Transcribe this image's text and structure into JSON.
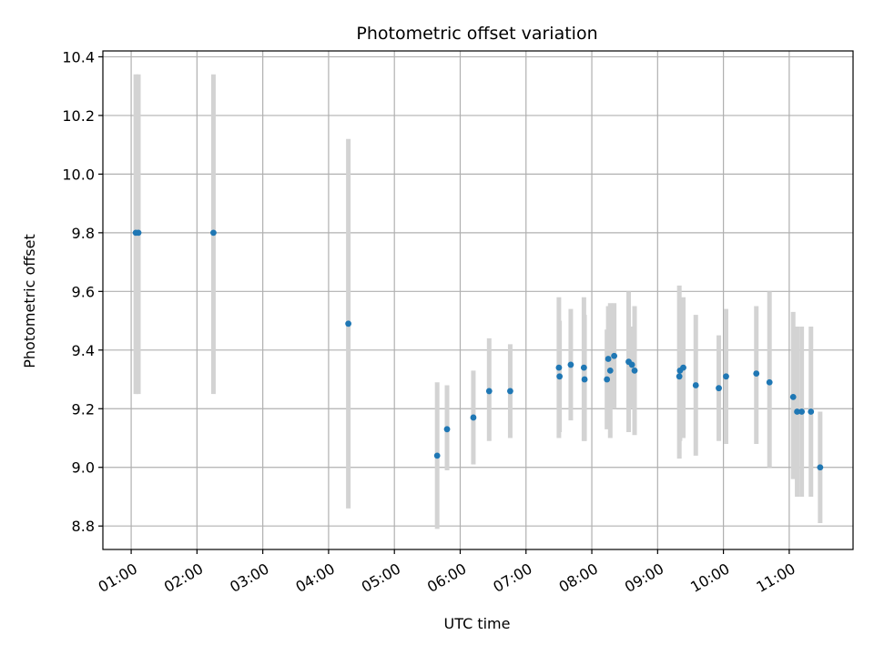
{
  "chart_data": {
    "type": "scatter",
    "title": "Photometric offset variation",
    "xlabel": "UTC time",
    "ylabel": "Photometric offset",
    "x_tick_labels": [
      "01:00",
      "02:00",
      "03:00",
      "04:00",
      "05:00",
      "06:00",
      "07:00",
      "08:00",
      "09:00",
      "10:00",
      "11:00"
    ],
    "x_ticks_hours": [
      1,
      2,
      3,
      4,
      5,
      6,
      7,
      8,
      9,
      10,
      11
    ],
    "xlim_hours": [
      0.57,
      11.97
    ],
    "y_tick_labels": [
      "8.8",
      "9.0",
      "9.2",
      "9.4",
      "9.6",
      "9.8",
      "10.0",
      "10.2",
      "10.4"
    ],
    "y_ticks": [
      8.8,
      9.0,
      9.2,
      9.4,
      9.6,
      9.8,
      10.0,
      10.2,
      10.4
    ],
    "ylim": [
      8.72,
      10.42
    ],
    "grid": true,
    "point_color": "#1f77b4",
    "errorbar_color": "#d3d3d3",
    "points": [
      {
        "t": 1.07,
        "y": 9.8,
        "lo": 9.25,
        "hi": 10.34
      },
      {
        "t": 1.11,
        "y": 9.8,
        "lo": 9.25,
        "hi": 10.34
      },
      {
        "t": 2.25,
        "y": 9.8,
        "lo": 9.25,
        "hi": 10.34
      },
      {
        "t": 4.3,
        "y": 9.49,
        "lo": 8.86,
        "hi": 10.12
      },
      {
        "t": 5.65,
        "y": 9.04,
        "lo": 8.79,
        "hi": 9.29
      },
      {
        "t": 5.8,
        "y": 9.13,
        "lo": 8.99,
        "hi": 9.28
      },
      {
        "t": 6.2,
        "y": 9.17,
        "lo": 9.01,
        "hi": 9.33
      },
      {
        "t": 6.44,
        "y": 9.26,
        "lo": 9.09,
        "hi": 9.44
      },
      {
        "t": 6.76,
        "y": 9.26,
        "lo": 9.1,
        "hi": 9.42
      },
      {
        "t": 7.5,
        "y": 9.34,
        "lo": 9.1,
        "hi": 9.58
      },
      {
        "t": 7.51,
        "y": 9.31,
        "lo": 9.12,
        "hi": 9.5
      },
      {
        "t": 7.68,
        "y": 9.35,
        "lo": 9.16,
        "hi": 9.54
      },
      {
        "t": 7.88,
        "y": 9.34,
        "lo": 9.09,
        "hi": 9.58
      },
      {
        "t": 7.89,
        "y": 9.3,
        "lo": 9.09,
        "hi": 9.52
      },
      {
        "t": 8.23,
        "y": 9.3,
        "lo": 9.13,
        "hi": 9.47
      },
      {
        "t": 8.25,
        "y": 9.37,
        "lo": 9.19,
        "hi": 9.55
      },
      {
        "t": 8.28,
        "y": 9.33,
        "lo": 9.1,
        "hi": 9.56
      },
      {
        "t": 8.34,
        "y": 9.38,
        "lo": 9.2,
        "hi": 9.56
      },
      {
        "t": 8.56,
        "y": 9.36,
        "lo": 9.12,
        "hi": 9.6
      },
      {
        "t": 8.61,
        "y": 9.35,
        "lo": 9.2,
        "hi": 9.48
      },
      {
        "t": 8.65,
        "y": 9.33,
        "lo": 9.11,
        "hi": 9.55
      },
      {
        "t": 9.33,
        "y": 9.31,
        "lo": 9.03,
        "hi": 9.62
      },
      {
        "t": 9.34,
        "y": 9.33,
        "lo": 9.09,
        "hi": 9.57
      },
      {
        "t": 9.39,
        "y": 9.34,
        "lo": 9.1,
        "hi": 9.58
      },
      {
        "t": 9.58,
        "y": 9.28,
        "lo": 9.04,
        "hi": 9.52
      },
      {
        "t": 9.93,
        "y": 9.27,
        "lo": 9.09,
        "hi": 9.45
      },
      {
        "t": 10.04,
        "y": 9.31,
        "lo": 9.08,
        "hi": 9.54
      },
      {
        "t": 10.5,
        "y": 9.32,
        "lo": 9.08,
        "hi": 9.55
      },
      {
        "t": 10.7,
        "y": 9.29,
        "lo": 9.0,
        "hi": 9.6
      },
      {
        "t": 11.06,
        "y": 9.24,
        "lo": 8.96,
        "hi": 9.53
      },
      {
        "t": 11.12,
        "y": 9.19,
        "lo": 8.9,
        "hi": 9.48
      },
      {
        "t": 11.19,
        "y": 9.19,
        "lo": 8.9,
        "hi": 9.48
      },
      {
        "t": 11.33,
        "y": 9.19,
        "lo": 8.9,
        "hi": 9.48
      },
      {
        "t": 11.47,
        "y": 9.0,
        "lo": 8.81,
        "hi": 9.19
      }
    ]
  }
}
